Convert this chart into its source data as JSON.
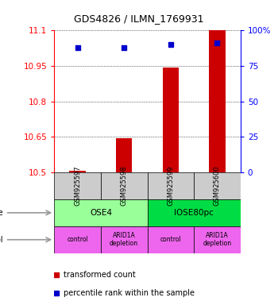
{
  "title": "GDS4826 / ILMN_1769931",
  "samples": [
    "GSM925597",
    "GSM925598",
    "GSM925599",
    "GSM925600"
  ],
  "bar_values": [
    10.505,
    10.645,
    10.945,
    11.1
  ],
  "bar_base": 10.5,
  "percentile_values": [
    88,
    88,
    90,
    91
  ],
  "ylim": [
    10.5,
    11.1
  ],
  "yticks": [
    10.5,
    10.65,
    10.8,
    10.95,
    11.1
  ],
  "ytick_labels": [
    "10.5",
    "10.65",
    "10.8",
    "10.95",
    "11.1"
  ],
  "right_yticks": [
    0,
    25,
    50,
    75,
    100
  ],
  "right_ytick_labels": [
    "0",
    "25",
    "50",
    "75",
    "100%"
  ],
  "bar_color": "#cc0000",
  "dot_color": "#0000cc",
  "cell_line_colors": [
    "#99ff99",
    "#00dd44"
  ],
  "cell_lines": [
    "OSE4",
    "IOSE80pc"
  ],
  "cell_line_spans": [
    [
      0,
      2
    ],
    [
      2,
      4
    ]
  ],
  "protocol_color": "#ee66ee",
  "protocols": [
    "control",
    "ARID1A\ndepletion",
    "control",
    "ARID1A\ndepletion"
  ],
  "sample_bg_color": "#cccccc",
  "legend_bar_label": "transformed count",
  "legend_dot_label": "percentile rank within the sample"
}
